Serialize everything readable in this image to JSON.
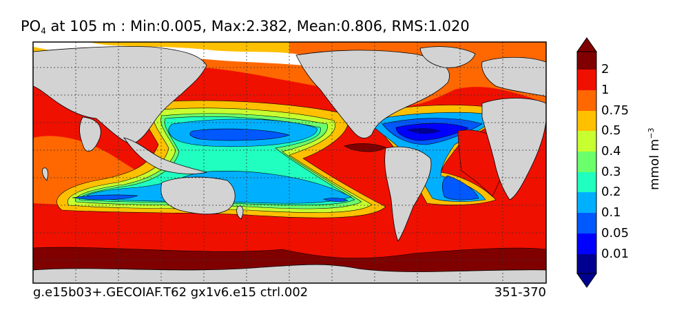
{
  "title": {
    "variable": "PO",
    "variable_sub": "4",
    "rest": "at 105 m : Min:0.005, Max:2.382, Mean:0.806, RMS:1.020"
  },
  "footer": {
    "case_name": "g.e15b03+.GECOIAF.T62 gx1v6.e15 ctrl.002",
    "years": "351-370"
  },
  "colorbar": {
    "units_base": "mmol m",
    "units_exp": "−3",
    "levels": [
      "2",
      "1",
      "0.75",
      "0.5",
      "0.4",
      "0.3",
      "0.2",
      "0.1",
      "0.05",
      "0.01"
    ],
    "colors_top_to_bottom": [
      "#800000",
      "#f01000",
      "#ff6800",
      "#ffc000",
      "#c8ff30",
      "#6cff6c",
      "#20ffc0",
      "#00b0ff",
      "#0058ff",
      "#0000ff",
      "#000090"
    ]
  },
  "colors": {
    "land": "#d3d3d3",
    "no_data": "#ffffff",
    "grid_lines": "#333333"
  }
}
